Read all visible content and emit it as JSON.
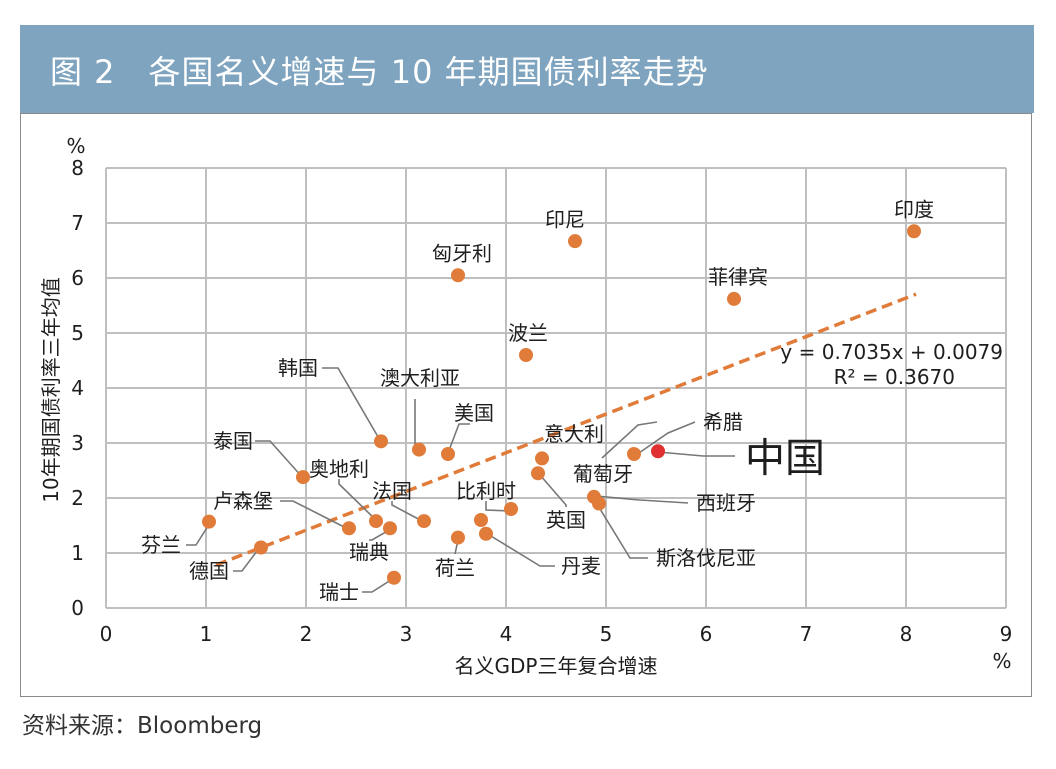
{
  "figure": {
    "title": "图 2　各国名义增速与 10 年期国债利率走势",
    "source": "资料来源：Bloomberg"
  },
  "colors": {
    "header_bg": "#7fa4bf",
    "point": "#e07b39",
    "highlight": "#e03030",
    "trendline": "#e07b39",
    "grid": "#bfbfbf"
  },
  "chart_data": {
    "type": "scatter",
    "xlabel": "名义GDP三年复合增速",
    "ylabel": "10年期国债利率三年均值",
    "x_unit": "%",
    "y_unit": "%",
    "xlim": [
      0,
      9
    ],
    "ylim": [
      0,
      8
    ],
    "xticks": [
      "0",
      "1",
      "2",
      "3",
      "4",
      "5",
      "6",
      "7",
      "8",
      "9"
    ],
    "yticks": [
      "0",
      "1",
      "2",
      "3",
      "4",
      "5",
      "6",
      "7",
      "8"
    ],
    "grid": true,
    "points": [
      {
        "name": "印度",
        "x": 8.08,
        "y": 6.85
      },
      {
        "name": "印尼",
        "x": 4.69,
        "y": 6.67
      },
      {
        "name": "匈牙利",
        "x": 3.52,
        "y": 6.05
      },
      {
        "name": "菲律宾",
        "x": 6.28,
        "y": 5.62
      },
      {
        "name": "波兰",
        "x": 4.2,
        "y": 4.6
      },
      {
        "name": "韩国",
        "x": 2.75,
        "y": 3.03
      },
      {
        "name": "澳大利亚",
        "x": 3.13,
        "y": 2.88
      },
      {
        "name": "美国",
        "x": 3.42,
        "y": 2.8
      },
      {
        "name": "希腊",
        "x": 5.28,
        "y": 2.8
      },
      {
        "name": "中国",
        "x": 5.52,
        "y": 2.85,
        "highlight": true
      },
      {
        "name": "意大利",
        "x": 4.36,
        "y": 2.72
      },
      {
        "name": "葡萄牙",
        "x": 4.32,
        "y": 2.45
      },
      {
        "name": "泰国",
        "x": 1.97,
        "y": 2.38
      },
      {
        "name": "西班牙",
        "x": 4.88,
        "y": 2.02
      },
      {
        "name": "斯洛伐尼亚",
        "x": 4.93,
        "y": 1.9
      },
      {
        "name": "英国",
        "x": 4.05,
        "y": 1.8
      },
      {
        "name": "比利时",
        "x": 3.75,
        "y": 1.6
      },
      {
        "name": "法国",
        "x": 3.18,
        "y": 1.58
      },
      {
        "name": "奥地利",
        "x": 2.7,
        "y": 1.58
      },
      {
        "name": "瑞典",
        "x": 2.84,
        "y": 1.45
      },
      {
        "name": "卢森堡",
        "x": 2.43,
        "y": 1.45
      },
      {
        "name": "芬兰",
        "x": 1.03,
        "y": 1.57
      },
      {
        "name": "丹麦",
        "x": 3.8,
        "y": 1.35
      },
      {
        "name": "荷兰",
        "x": 3.52,
        "y": 1.28
      },
      {
        "name": "德国",
        "x": 1.55,
        "y": 1.1
      },
      {
        "name": "瑞士",
        "x": 2.88,
        "y": 0.55
      }
    ],
    "trendline": {
      "slope": 0.7035,
      "intercept": 0.0079,
      "x_start": 1.1,
      "x_end": 8.1,
      "equation": "y = 0.7035x + 0.0079",
      "r2": "R² = 0.3670"
    }
  }
}
